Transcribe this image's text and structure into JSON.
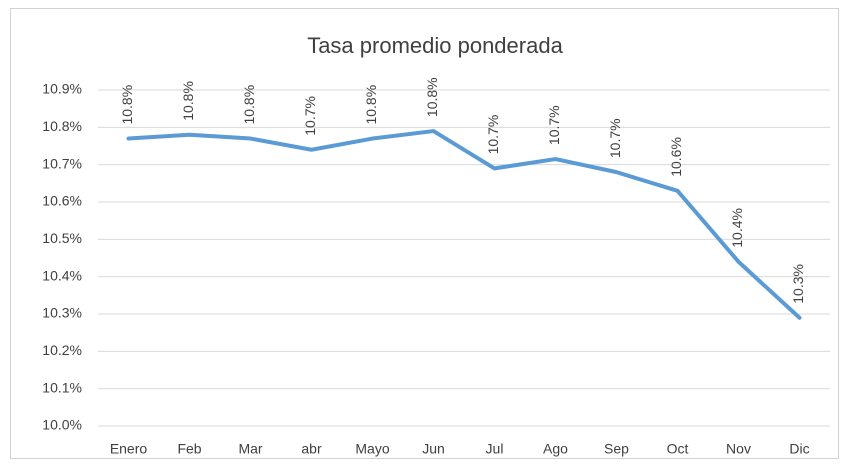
{
  "chart_data": {
    "type": "line",
    "title": "Tasa promedio ponderada",
    "categories": [
      "Enero",
      "Feb",
      "Mar",
      "abr",
      "Mayo",
      "Jun",
      "Jul",
      "Ago",
      "Sep",
      "Oct",
      "Nov",
      "Dic"
    ],
    "series": [
      {
        "color": "#5b9bd5",
        "values": [
          10.77,
          10.78,
          10.77,
          10.74,
          10.77,
          10.79,
          10.69,
          10.715,
          10.68,
          10.63,
          10.44,
          10.29
        ],
        "value_labels": [
          "10.8%",
          "10.8%",
          "10.8%",
          "10.7%",
          "10.8%",
          "10.8%",
          "10.7%",
          "10.7%",
          "10.7%",
          "10.6%",
          "10.4%",
          "10.3%"
        ]
      }
    ],
    "ylim": [
      10.0,
      10.9
    ],
    "yticks": [
      {
        "value": 10.0,
        "label": "10.0%"
      },
      {
        "value": 10.1,
        "label": "10.1%"
      },
      {
        "value": 10.2,
        "label": "10.2%"
      },
      {
        "value": 10.3,
        "label": "10.3%"
      },
      {
        "value": 10.4,
        "label": "10.4%"
      },
      {
        "value": 10.5,
        "label": "10.5%"
      },
      {
        "value": 10.6,
        "label": "10.6%"
      },
      {
        "value": 10.7,
        "label": "10.7%"
      },
      {
        "value": 10.8,
        "label": "10.8%"
      },
      {
        "value": 10.9,
        "label": "10.9%"
      }
    ],
    "grid": true
  }
}
